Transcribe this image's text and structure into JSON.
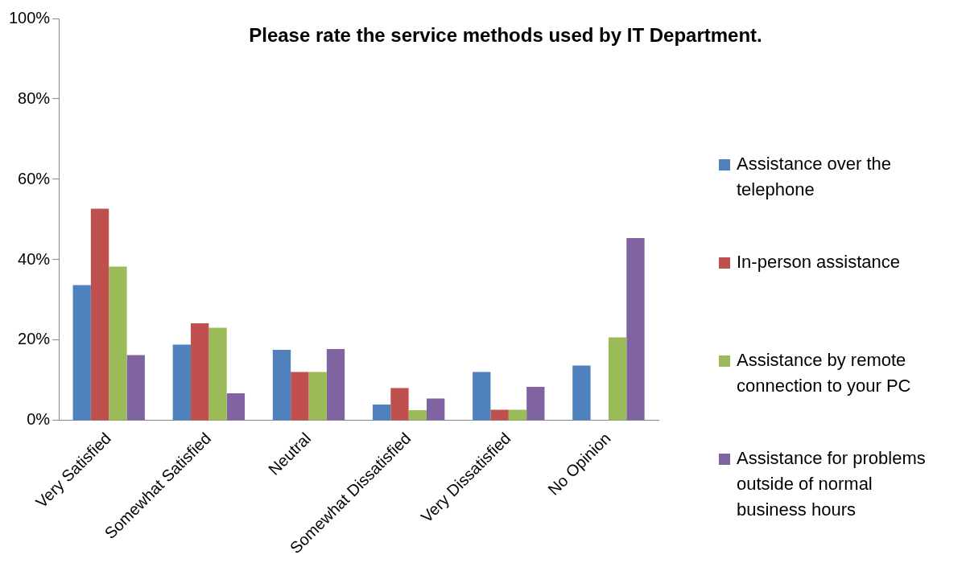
{
  "chart_data": {
    "type": "bar",
    "title": "Please rate the service methods used by IT Department.",
    "categories": [
      "Very Satisfied",
      "Somewhat Satisfied",
      "Neutral",
      "Somewhat Dissatisfied",
      "Very Dissatisfied",
      "No Opinion"
    ],
    "series": [
      {
        "name": "Assistance over the telephone",
        "color": "#4f81bd",
        "values": [
          33.7,
          18.9,
          17.6,
          4.0,
          12.1,
          13.7
        ]
      },
      {
        "name": "In-person assistance",
        "color": "#c0504d",
        "values": [
          52.7,
          24.2,
          12.1,
          8.1,
          2.7,
          0
        ]
      },
      {
        "name": "Assistance by remote connection to your PC",
        "color": "#9bbb59",
        "values": [
          38.3,
          23.1,
          12.1,
          2.6,
          2.7,
          20.7
        ]
      },
      {
        "name": "Assistance for problems outside of normal business hours",
        "color": "#8064a2",
        "values": [
          16.3,
          6.8,
          17.8,
          5.5,
          8.4,
          45.4
        ]
      }
    ],
    "ylim": [
      0,
      100
    ],
    "yticks": [
      {
        "value": 0,
        "label": "0%"
      },
      {
        "value": 20,
        "label": "20%"
      },
      {
        "value": 40,
        "label": "40%"
      },
      {
        "value": 60,
        "label": "60%"
      },
      {
        "value": 80,
        "label": "80%"
      },
      {
        "value": 100,
        "label": "100%"
      }
    ],
    "grid": false,
    "legend": "right"
  }
}
